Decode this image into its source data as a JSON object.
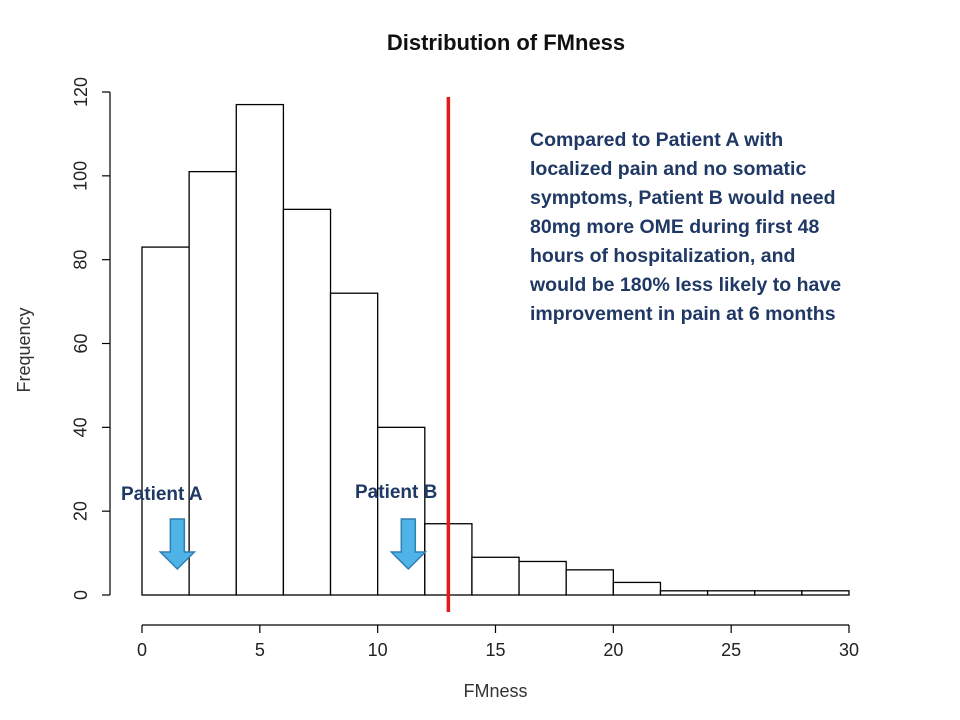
{
  "chart_data": {
    "type": "bar",
    "title": "Distribution of FMness",
    "xlabel": "FMness",
    "ylabel": "Frequency",
    "bin_edges": [
      0,
      2,
      4,
      6,
      8,
      10,
      12,
      14,
      16,
      18,
      20,
      22,
      24,
      26,
      28,
      30
    ],
    "values": [
      83,
      101,
      117,
      92,
      72,
      40,
      17,
      9,
      8,
      6,
      3,
      1,
      1,
      1,
      1
    ],
    "xlim": [
      0,
      30
    ],
    "ylim": [
      0,
      120
    ],
    "x_ticks": [
      0,
      5,
      10,
      15,
      20,
      25,
      30
    ],
    "y_ticks": [
      0,
      20,
      40,
      60,
      80,
      100,
      120
    ],
    "cutoff_line": {
      "x": 13,
      "color": "#e31a1c"
    },
    "bar_fill": "#ffffff",
    "bar_stroke": "#000000",
    "grid": false,
    "annotations": {
      "callout": "Compared to Patient A with\nlocalized pain and no somatic\nsymptoms, Patient B would need\n80mg more OME during first 48\nhours of hospitalization, and\nwould be 180% less likely to have\nimprovement in pain at 6 months",
      "patient_a": {
        "label": "Patient A",
        "x": 1.5
      },
      "patient_b": {
        "label": "Patient B",
        "x": 11.3
      },
      "arrow_color": "#4fb3e8"
    }
  }
}
